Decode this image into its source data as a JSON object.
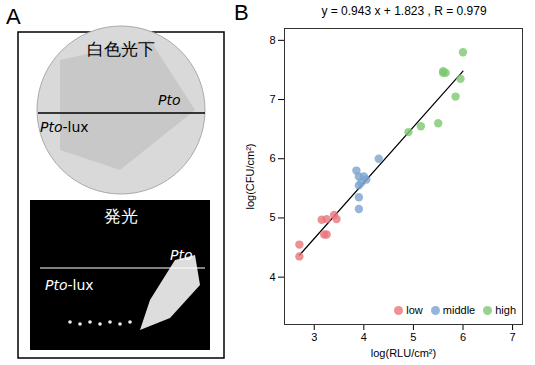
{
  "panels": {
    "a": "A",
    "b": "B"
  },
  "panel_a": {
    "top_caption": "白色光下",
    "bottom_caption": "発光",
    "labels": [
      "Pto",
      "Pto-lux"
    ]
  },
  "chart_data": {
    "type": "scatter",
    "title": "y = 0.943 x + 1.823 , R = 0.979",
    "x_label": "log(RLU/cm²)",
    "y_label": "log(CFU/cm²)",
    "xlim": [
      2.4,
      7.2
    ],
    "xticks": [
      3,
      4,
      5,
      6,
      7
    ],
    "ylim": [
      3.2,
      8.2
    ],
    "yticks": [
      4,
      5,
      6,
      7,
      8
    ],
    "grid": false,
    "legend": "bottom-right",
    "series": [
      {
        "name": "low",
        "color": "#e8767a",
        "x": [
          2.7,
          2.7,
          3.15,
          3.2,
          3.25,
          3.25,
          3.4,
          3.45
        ],
        "values": [
          4.55,
          4.35,
          4.97,
          4.72,
          4.98,
          4.72,
          5.05,
          4.98
        ]
      },
      {
        "name": "middle",
        "color": "#7ba3cf",
        "x": [
          3.85,
          3.9,
          3.9,
          3.9,
          3.95,
          4.05,
          4.0,
          4.3,
          3.9
        ],
        "values": [
          5.8,
          5.15,
          5.35,
          5.55,
          5.6,
          5.65,
          5.7,
          6.0,
          5.7
        ]
      },
      {
        "name": "high",
        "color": "#7dc870",
        "x": [
          4.9,
          5.15,
          5.5,
          5.6,
          5.65,
          5.85,
          5.95,
          6.0,
          5.6
        ],
        "values": [
          6.45,
          6.55,
          6.6,
          7.45,
          7.45,
          7.05,
          7.35,
          7.8,
          7.48
        ]
      }
    ],
    "fit_line": {
      "x": [
        2.7,
        6.0
      ],
      "values": [
        4.37,
        7.48
      ],
      "color": "#000000"
    }
  }
}
